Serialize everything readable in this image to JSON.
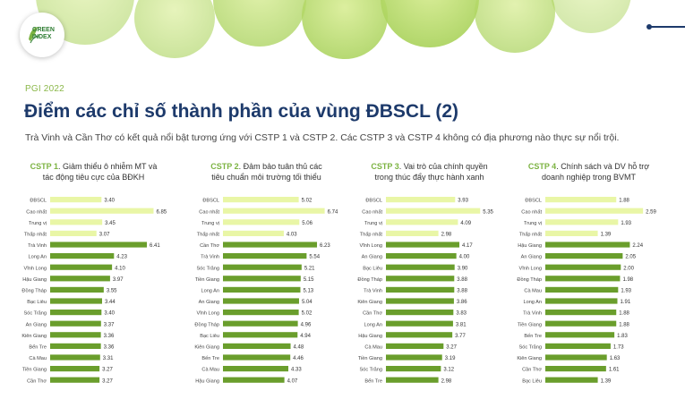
{
  "logo": {
    "line1": "GREEN",
    "line2": "INDEX"
  },
  "tag": "PGI 2022",
  "title": "Điểm các chỉ số thành phần của vùng ĐBSCL (2)",
  "subtitle": "Trà Vinh và Cần Thơ có kết quả nổi bật tương ứng với CSTP 1 và CSTP 2. Các CSTP 3 và CSTP 4 không có địa phương nào thực sự nổi trội.",
  "colors": {
    "light": "#e9f6a6",
    "dark": "#6a9e2c",
    "accent": "#7cb342",
    "title": "#1d3a6b"
  },
  "chart_data": [
    {
      "type": "bar",
      "code": "CSTP 1",
      "title_line1": ". Giảm thiểu ô nhiễm MT và",
      "title_line2": "tác động tiêu cực của BĐKH",
      "categories": [
        "ĐBSCL",
        "Cao nhất",
        "Trung vị",
        "Thấp nhất",
        "Trà Vinh",
        "Long An",
        "Vĩnh Long",
        "Hậu Giang",
        "Đồng Tháp",
        "Bạc Liêu",
        "Sóc Trăng",
        "An Giang",
        "Kiên Giang",
        "Bến Tre",
        "Cà Mau",
        "Tiền Giang",
        "Cần Thơ"
      ],
      "values": [
        3.4,
        6.85,
        3.45,
        3.07,
        6.41,
        4.23,
        4.1,
        3.97,
        3.55,
        3.44,
        3.4,
        3.37,
        3.36,
        3.36,
        3.31,
        3.27,
        3.27
      ],
      "labels": [
        "3.40",
        "6.85",
        "3.45",
        "3.07",
        "6.41",
        "4.23",
        "4.10",
        "3.97",
        "3.55",
        "3.44",
        "3.40",
        "3.37",
        "3.36",
        "3.36",
        "3.31",
        "3.27",
        "3.27"
      ],
      "summary_count": 4,
      "xlim": [
        0,
        7
      ]
    },
    {
      "type": "bar",
      "code": "CSTP 2",
      "title_line1": ". Đảm bảo tuân thủ các",
      "title_line2": "tiêu chuẩn môi trường tối thiểu",
      "categories": [
        "ĐBSCL",
        "Cao nhất",
        "Trung vị",
        "Thấp nhất",
        "Cần Thơ",
        "Trà Vinh",
        "Sóc Trăng",
        "Tiền Giang",
        "Long An",
        "An Giang",
        "Vĩnh Long",
        "Đồng Tháp",
        "Bạc Liêu",
        "Kiên Giang",
        "Bến Tre",
        "Cà Mau",
        "Hậu Giang"
      ],
      "values": [
        5.02,
        6.74,
        5.06,
        4.03,
        6.23,
        5.54,
        5.21,
        5.15,
        5.13,
        5.04,
        5.02,
        4.96,
        4.94,
        4.48,
        4.46,
        4.33,
        4.07
      ],
      "labels": [
        "5.02",
        "6.74",
        "5.06",
        "4.03",
        "6.23",
        "5.54",
        "5.21",
        "5.15",
        "5.13",
        "5.04",
        "5.02",
        "4.96",
        "4.94",
        "4.48",
        "4.46",
        "4.33",
        "4.07"
      ],
      "summary_count": 4,
      "xlim": [
        0,
        7
      ]
    },
    {
      "type": "bar",
      "code": "CSTP 3",
      "title_line1": ". Vai trò của chính quyền",
      "title_line2": "trong thúc đẩy thực hành xanh",
      "categories": [
        "ĐBSCL",
        "Cao nhất",
        "Trung vị",
        "Thấp nhất",
        "Vĩnh Long",
        "An Giang",
        "Bạc Liêu",
        "Đồng Tháp",
        "Trà Vinh",
        "Kiên Giang",
        "Cần Thơ",
        "Long An",
        "Hậu Giang",
        "Cà Mau",
        "Tiền Giang",
        "Sóc Trăng",
        "Bến Tre"
      ],
      "values": [
        3.93,
        5.35,
        4.09,
        2.98,
        4.17,
        4.0,
        3.9,
        3.88,
        3.88,
        3.86,
        3.83,
        3.81,
        3.77,
        3.27,
        3.19,
        3.12,
        2.98
      ],
      "labels": [
        "3.93",
        "5.35",
        "4.09",
        "2.98",
        "4.17",
        "4.00",
        "3.90",
        "3.88",
        "3.88",
        "3.86",
        "3.83",
        "3.81",
        "3.77",
        "3.27",
        "3.19",
        "3.12",
        "2.98"
      ],
      "summary_count": 4,
      "xlim": [
        0,
        6
      ]
    },
    {
      "type": "bar",
      "code": "CSTP 4",
      "title_line1": ". Chính sách và DV hỗ trợ",
      "title_line2": "doanh nghiệp trong  BVMT",
      "categories": [
        "ĐBSCL",
        "Cao nhất",
        "Trung vị",
        "Thấp nhất",
        "Hậu Giang",
        "An Giang",
        "Vĩnh Long",
        "Đồng Tháp",
        "Cà Mau",
        "Long An",
        "Trà Vinh",
        "Tiền Giang",
        "Bến Tre",
        "Sóc Trăng",
        "Kiên Giang",
        "Cần Thơ",
        "Bạc Liêu"
      ],
      "values": [
        1.88,
        2.59,
        1.93,
        1.39,
        2.24,
        2.05,
        2.0,
        1.98,
        1.93,
        1.91,
        1.88,
        1.88,
        1.83,
        1.73,
        1.63,
        1.61,
        1.39
      ],
      "labels": [
        "1.88",
        "2.59",
        "1.93",
        "1.39",
        "2.24",
        "2.05",
        "2.00",
        "1.98",
        "1.93",
        "1.91",
        "1.88",
        "1.88",
        "1.83",
        "1.73",
        "1.63",
        "1.61",
        "1.39"
      ],
      "summary_count": 4,
      "xlim": [
        0,
        2.8
      ]
    }
  ]
}
